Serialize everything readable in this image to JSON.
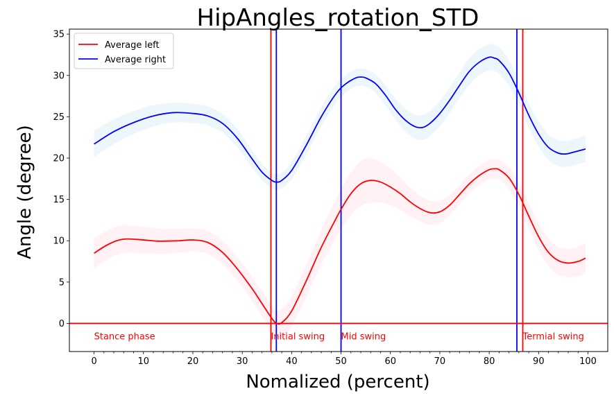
{
  "chart_data": {
    "type": "line",
    "title": "HipAngles_rotation_STD",
    "xlabel": "Nomalized (percent)",
    "ylabel": "Angle (degree)",
    "xlim": [
      -5,
      104
    ],
    "ylim": [
      -3.4,
      35.6
    ],
    "xticks": [
      0,
      10,
      20,
      30,
      40,
      50,
      60,
      70,
      80,
      90,
      100
    ],
    "yticks": [
      0,
      5,
      10,
      15,
      20,
      25,
      30,
      35
    ],
    "minor_xtick_step": 2,
    "grid": false,
    "legend_position": "top-left",
    "series": [
      {
        "name": "Average left",
        "color": "#ff0000",
        "band_color": "#ffc0cb",
        "points": [
          [
            0,
            8.5
          ],
          [
            3,
            9.6
          ],
          [
            6,
            10.2
          ],
          [
            10,
            10.1
          ],
          [
            13,
            9.95
          ],
          [
            17,
            10.0
          ],
          [
            20,
            10.1
          ],
          [
            23,
            9.8
          ],
          [
            26,
            8.6
          ],
          [
            29,
            6.6
          ],
          [
            32,
            4.2
          ],
          [
            34,
            2.4
          ],
          [
            36,
            0.6
          ],
          [
            37,
            0.0
          ],
          [
            38,
            0.1
          ],
          [
            40,
            1.5
          ],
          [
            43,
            5.2
          ],
          [
            46,
            9.2
          ],
          [
            49,
            12.7
          ],
          [
            50,
            13.8
          ],
          [
            52,
            15.7
          ],
          [
            54,
            16.9
          ],
          [
            56,
            17.3
          ],
          [
            58,
            17.1
          ],
          [
            60,
            16.5
          ],
          [
            62,
            15.7
          ],
          [
            64,
            14.7
          ],
          [
            66,
            13.9
          ],
          [
            68,
            13.4
          ],
          [
            70,
            13.5
          ],
          [
            72,
            14.3
          ],
          [
            74,
            15.6
          ],
          [
            76,
            16.9
          ],
          [
            78,
            17.9
          ],
          [
            80,
            18.6
          ],
          [
            81,
            18.7
          ],
          [
            82,
            18.6
          ],
          [
            84,
            17.6
          ],
          [
            86,
            15.6
          ],
          [
            88,
            13.0
          ],
          [
            90,
            10.5
          ],
          [
            92,
            8.6
          ],
          [
            94,
            7.6
          ],
          [
            96,
            7.3
          ],
          [
            98,
            7.5
          ],
          [
            99.5,
            7.9
          ]
        ],
        "std": [
          [
            0,
            1.8
          ],
          [
            20,
            1.4
          ],
          [
            30,
            1.4
          ],
          [
            36,
            1.6
          ],
          [
            45,
            2.0
          ],
          [
            55,
            2.8
          ],
          [
            65,
            1.6
          ],
          [
            75,
            1.1
          ],
          [
            82,
            1.2
          ],
          [
            90,
            1.6
          ],
          [
            99.5,
            1.8
          ]
        ]
      },
      {
        "name": "Average right",
        "color": "#0000ff",
        "band_color": "#add8e6",
        "points": [
          [
            0,
            21.7
          ],
          [
            4,
            23.2
          ],
          [
            8,
            24.3
          ],
          [
            12,
            25.1
          ],
          [
            16,
            25.5
          ],
          [
            20,
            25.4
          ],
          [
            23,
            25.1
          ],
          [
            26,
            24.2
          ],
          [
            29,
            22.4
          ],
          [
            32,
            19.9
          ],
          [
            34,
            18.3
          ],
          [
            36,
            17.3
          ],
          [
            37,
            17.1
          ],
          [
            38,
            17.3
          ],
          [
            40,
            18.5
          ],
          [
            43,
            21.6
          ],
          [
            46,
            25.0
          ],
          [
            49,
            27.8
          ],
          [
            51,
            29.0
          ],
          [
            53,
            29.7
          ],
          [
            54,
            29.8
          ],
          [
            55,
            29.7
          ],
          [
            57,
            29.0
          ],
          [
            59,
            27.6
          ],
          [
            61,
            25.9
          ],
          [
            63,
            24.6
          ],
          [
            65,
            23.8
          ],
          [
            66.5,
            23.7
          ],
          [
            68,
            24.2
          ],
          [
            70,
            25.4
          ],
          [
            72,
            27.0
          ],
          [
            74,
            28.8
          ],
          [
            76,
            30.5
          ],
          [
            78,
            31.6
          ],
          [
            80,
            32.2
          ],
          [
            81,
            32.1
          ],
          [
            82,
            31.8
          ],
          [
            84,
            30.3
          ],
          [
            86,
            27.9
          ],
          [
            88,
            25.2
          ],
          [
            90,
            22.9
          ],
          [
            92,
            21.3
          ],
          [
            94,
            20.6
          ],
          [
            95.5,
            20.5
          ],
          [
            97,
            20.7
          ],
          [
            99.5,
            21.1
          ]
        ],
        "std": [
          [
            0,
            1.6
          ],
          [
            15,
            1.2
          ],
          [
            30,
            1.1
          ],
          [
            37,
            0.9
          ],
          [
            45,
            1.2
          ],
          [
            54,
            1.0
          ],
          [
            66,
            1.5
          ],
          [
            80,
            1.6
          ],
          [
            88,
            1.5
          ],
          [
            99.5,
            1.6
          ]
        ]
      }
    ],
    "reference_lines": {
      "horizontal": [
        {
          "y": 0,
          "color": "#ff0000"
        }
      ],
      "vertical": [
        {
          "x": 35.8,
          "color": "#ff0000"
        },
        {
          "x": 36.9,
          "color": "#0000ff"
        },
        {
          "x": 50.0,
          "color": "#0000ff"
        },
        {
          "x": 85.6,
          "color": "#0000ff"
        },
        {
          "x": 86.8,
          "color": "#ff0000"
        }
      ]
    },
    "annotations": [
      {
        "text": "Stance phase",
        "x": 0,
        "y": -1.5,
        "color": "#ff0000"
      },
      {
        "text": "Initial swing",
        "x": 35.8,
        "y": -1.5,
        "color": "#ff0000"
      },
      {
        "text": "Mid swing",
        "x": 50.0,
        "y": -1.5,
        "color": "#ff0000"
      },
      {
        "text": "Termial swing",
        "x": 86.8,
        "y": -1.5,
        "color": "#ff0000"
      }
    ]
  }
}
